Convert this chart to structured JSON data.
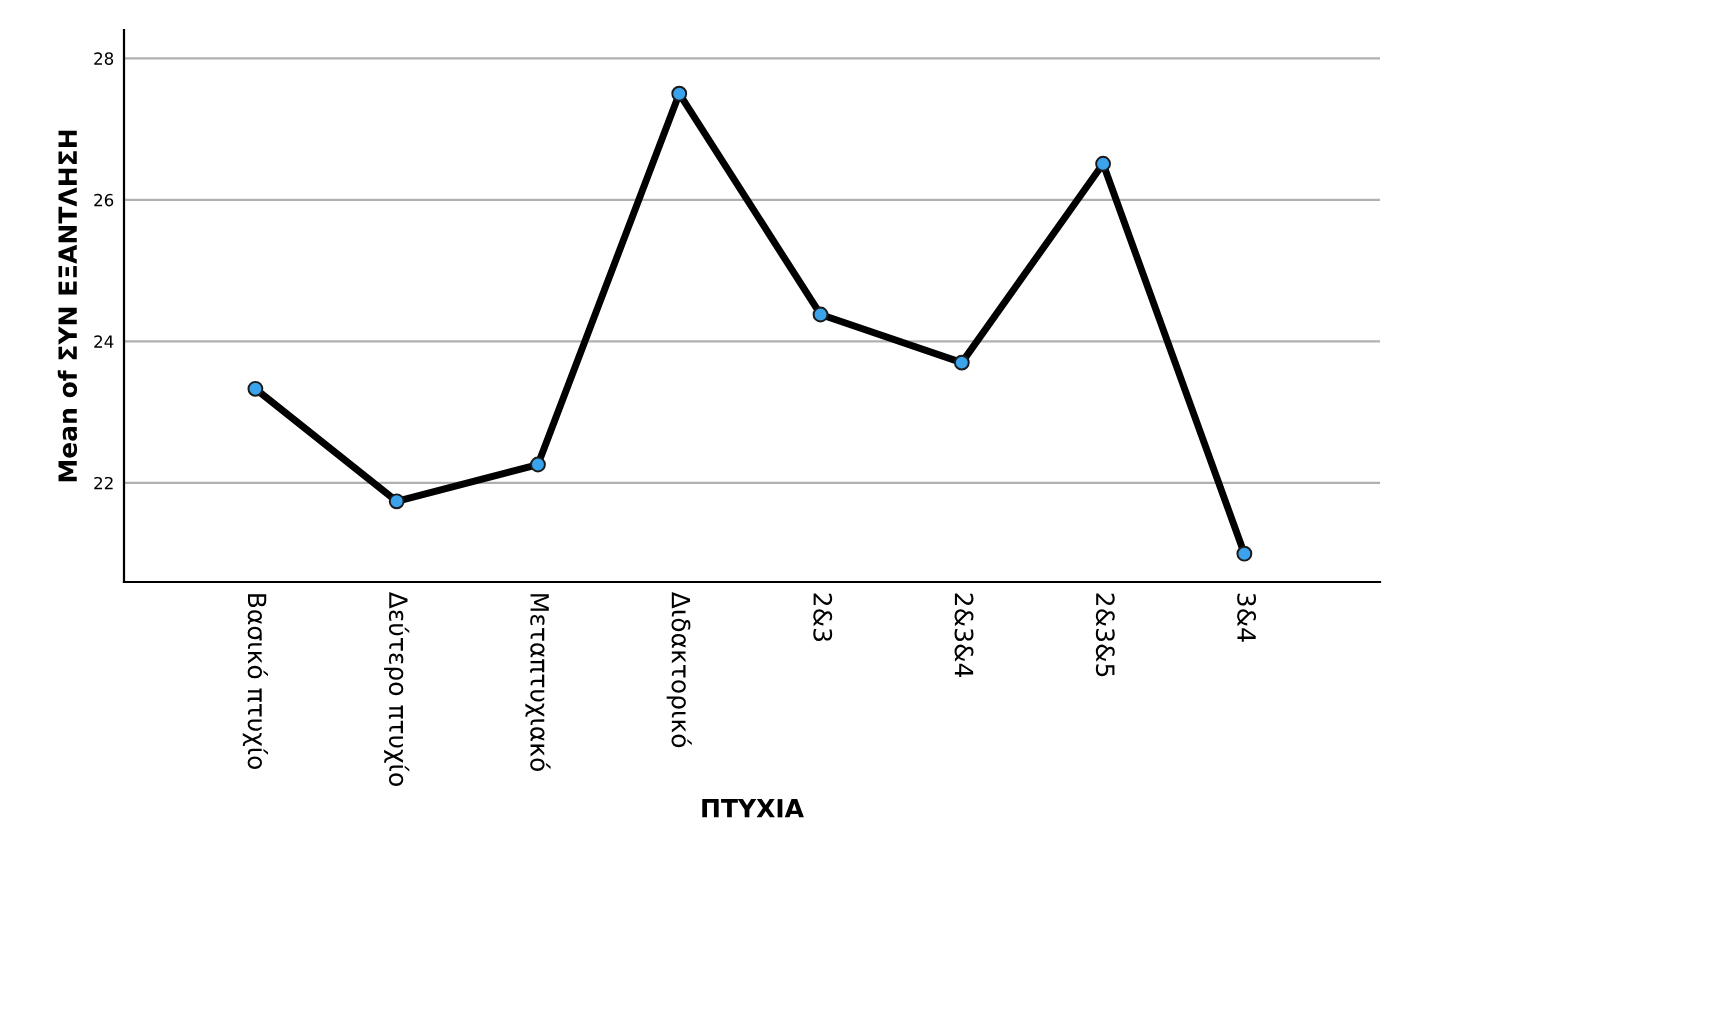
{
  "chart_data": {
    "type": "line",
    "xlabel": "ΠΤΥΧΙΑ",
    "ylabel": "Mean of ΣΥΝ ΕΞΑΝΤΛΗΣΗ",
    "categories": [
      "Βασικό πτυχίο",
      "Δεύτερο πτυχίο",
      "Μεταπτυχιακό",
      "Διδακτορικό",
      "2&3",
      "2&3&4",
      "2&3&5",
      "3&4"
    ],
    "series": [
      {
        "color": "#000000",
        "values": [
          23.33,
          21.74,
          22.26,
          27.5,
          24.38,
          23.7,
          26.51,
          21.0
        ]
      }
    ],
    "marker": "circle",
    "line_style": "solid",
    "grid": "y",
    "legend": false,
    "ylim": [
      20.6,
      28.4
    ],
    "yticks": [
      22,
      24,
      26,
      28
    ]
  }
}
